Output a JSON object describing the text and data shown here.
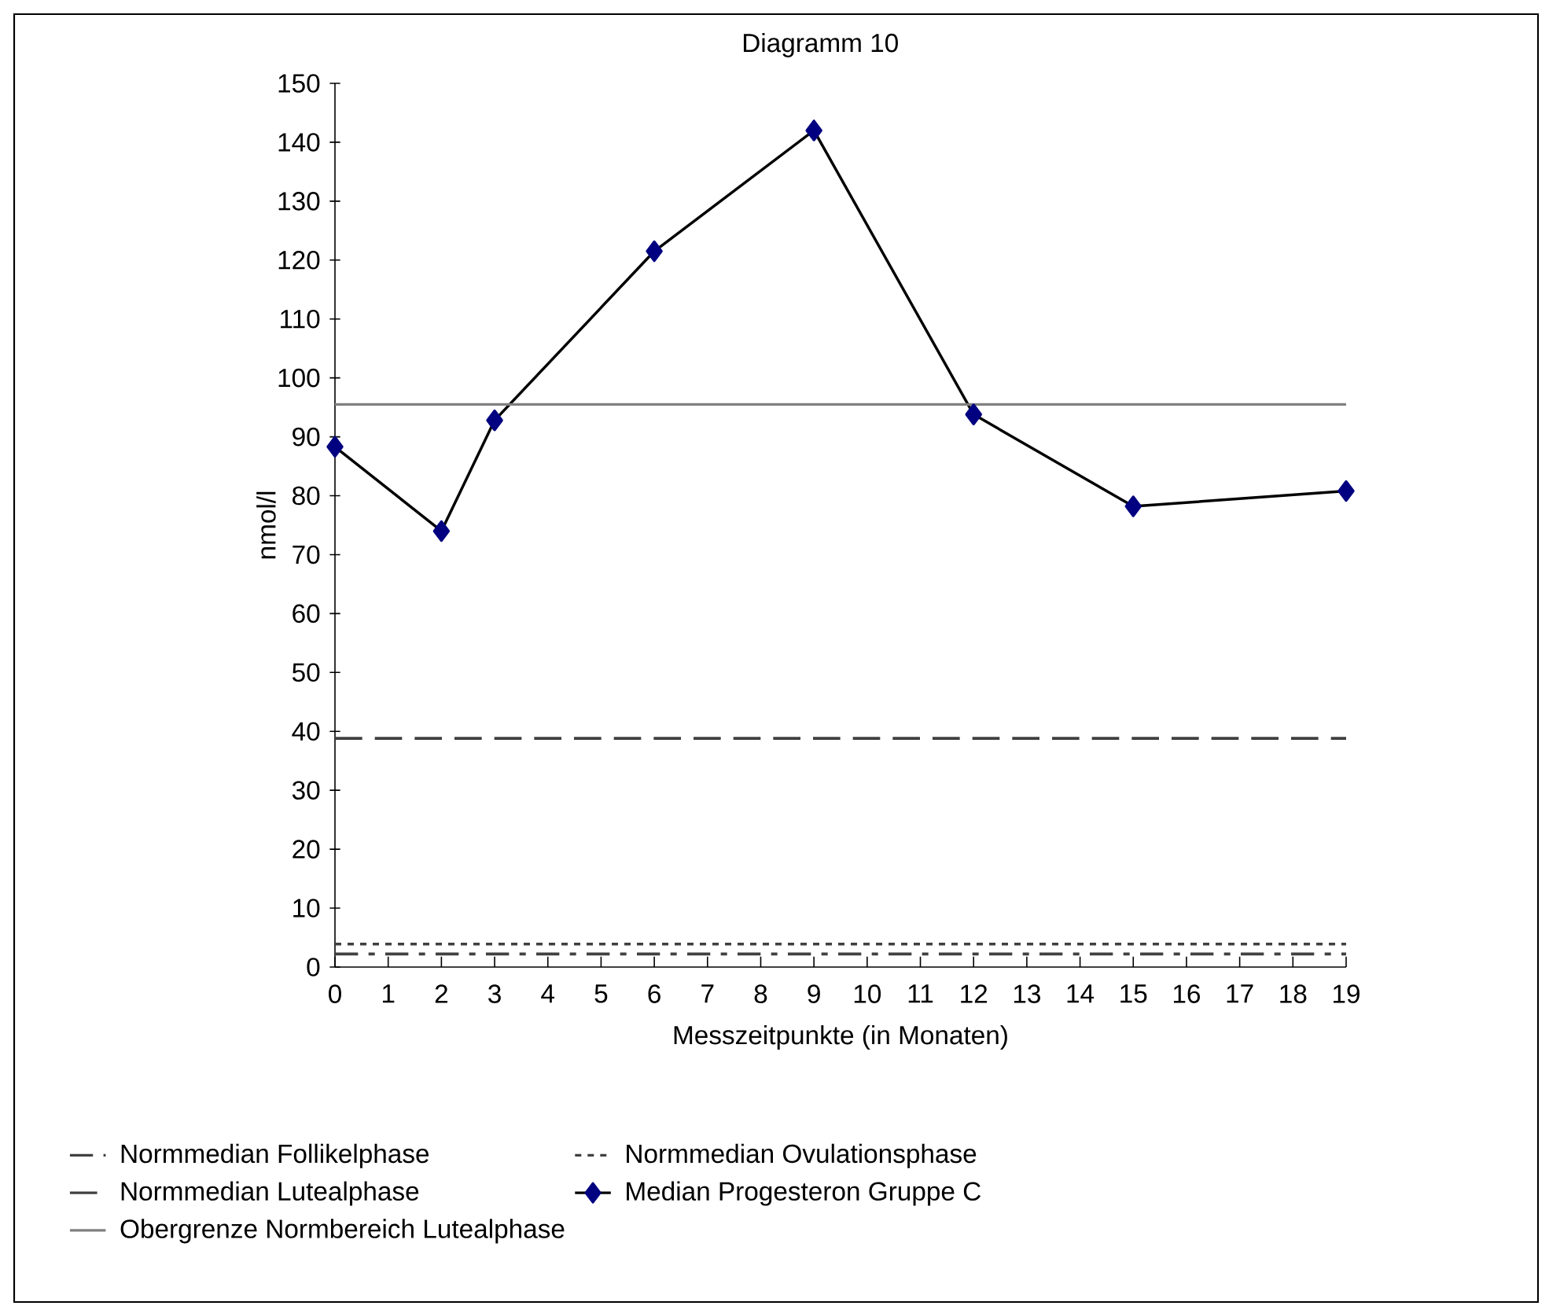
{
  "chart_data": {
    "type": "line",
    "title": "Diagramm 10",
    "xlabel": "Messzeitpunkte (in Monaten)",
    "ylabel": "nmol/l",
    "xlim": [
      0,
      19
    ],
    "xticks": [
      0,
      1,
      2,
      3,
      4,
      5,
      6,
      7,
      8,
      9,
      10,
      11,
      12,
      13,
      14,
      15,
      16,
      17,
      18,
      19
    ],
    "ylim": [
      0,
      150
    ],
    "yticks": [
      0,
      10,
      20,
      30,
      40,
      50,
      60,
      70,
      80,
      90,
      100,
      110,
      120,
      130,
      140,
      150
    ],
    "legend": "bottom",
    "marker": "none",
    "series": [
      {
        "name": "Normmedian Follikelphase",
        "color": "#404040",
        "line_style": "dashdot",
        "x": [
          0,
          19
        ],
        "values": [
          2.2,
          2.2
        ]
      },
      {
        "name": "Normmedian Ovulationsphase",
        "color": "#404040",
        "line_style": "dotted",
        "x": [
          0,
          19
        ],
        "values": [
          3.9,
          3.9
        ]
      },
      {
        "name": "Normmedian Lutealphase",
        "color": "#404040",
        "line_style": "dashed",
        "x": [
          0,
          19
        ],
        "values": [
          38.8,
          38.8
        ]
      },
      {
        "name": "Median Progesteron Gruppe C",
        "color": "#000080",
        "line_style": "solid",
        "marker": "diamond",
        "x": [
          0,
          2,
          3,
          6,
          9,
          12,
          15,
          19
        ],
        "values": [
          88.3,
          74.0,
          92.8,
          121.5,
          142.0,
          93.8,
          78.2,
          80.8
        ]
      },
      {
        "name": "Obergrenze Normbereich Lutealphase",
        "color": "#808080",
        "line_style": "solid",
        "x": [
          0,
          19
        ],
        "values": [
          95.5,
          95.5
        ]
      }
    ]
  }
}
